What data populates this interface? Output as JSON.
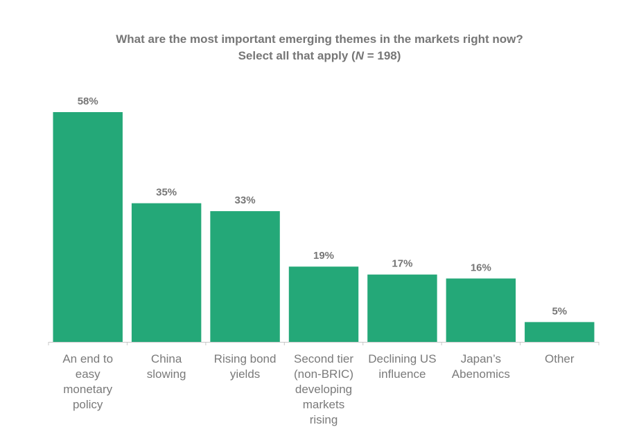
{
  "chart_data": {
    "type": "bar",
    "title": "What are the most important emerging themes in the markets right now?",
    "subtitle_prefix": "Select all that apply (",
    "subtitle_n_symbol": "N",
    "subtitle_suffix": " = 198)",
    "categories": [
      "An end to easy monetary policy",
      "China slowing",
      "Rising bond yields",
      "Second tier (non-BRIC) developing markets rising",
      "Declining US influence",
      "Japan’s Abenomics",
      "Other"
    ],
    "category_lines": [
      [
        "An end to",
        "easy",
        "monetary",
        "policy"
      ],
      [
        "China",
        "slowing"
      ],
      [
        "Rising bond",
        "yields"
      ],
      [
        "Second tier",
        "(non-BRIC)",
        "developing",
        "markets",
        "rising"
      ],
      [
        "Declining US",
        "influence"
      ],
      [
        "Japan’s",
        "Abenomics"
      ],
      [
        "Other"
      ]
    ],
    "values": [
      58,
      35,
      33,
      19,
      17,
      16,
      5
    ],
    "value_labels": [
      "58%",
      "35%",
      "33%",
      "19%",
      "17%",
      "16%",
      "5%"
    ],
    "unit": "%",
    "xlabel": "",
    "ylabel": "",
    "ylim": [
      0,
      60
    ],
    "grid": false,
    "legend": "none",
    "bar_color": "#24a878",
    "axis_color": "#c8c8c8",
    "text_color": "#767676"
  }
}
